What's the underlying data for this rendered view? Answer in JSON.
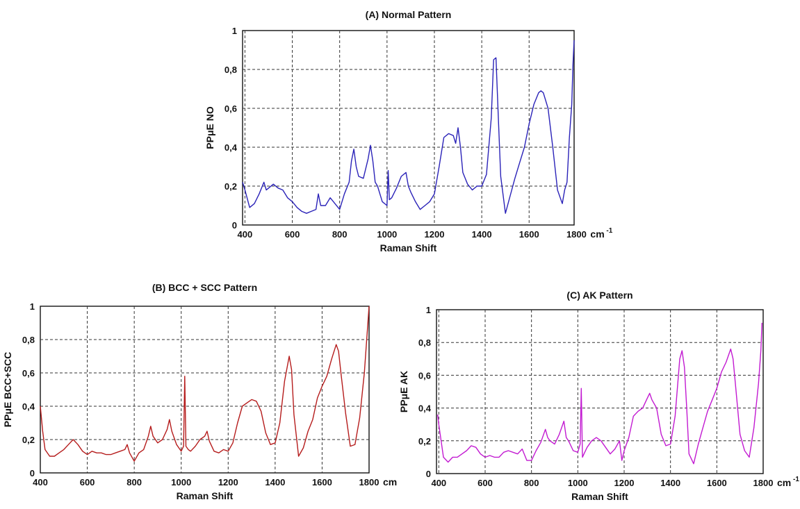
{
  "chart_data": [
    {
      "type": "line",
      "title": "(A)  Normal Pattern",
      "xlabel": "Raman Shift",
      "ylabel": "PPμE NO",
      "x_unit": "cm",
      "x_unit_exp": "-1",
      "xlim": [
        390,
        1790
      ],
      "ylim": [
        0,
        1
      ],
      "xticks": [
        400,
        600,
        800,
        1000,
        1200,
        1400,
        1600,
        1800
      ],
      "yticks": [
        0,
        0.2,
        0.4,
        0.6,
        0.8,
        1
      ],
      "ytick_labels": [
        "0",
        "0,2",
        "0,4",
        "0,6",
        "0,8",
        "1"
      ],
      "grid": true,
      "color": "#2a22b8",
      "series": [
        {
          "x": [
            390,
            400,
            420,
            440,
            460,
            480,
            490,
            500,
            520,
            540,
            560,
            580,
            600,
            620,
            640,
            660,
            680,
            700,
            710,
            720,
            740,
            760,
            780,
            800,
            820,
            840,
            850,
            860,
            870,
            880,
            900,
            920,
            930,
            940,
            950,
            960,
            980,
            1000,
            1005,
            1010,
            1020,
            1040,
            1060,
            1080,
            1090,
            1100,
            1120,
            1140,
            1160,
            1180,
            1200,
            1220,
            1240,
            1260,
            1280,
            1290,
            1300,
            1310,
            1320,
            1340,
            1360,
            1380,
            1400,
            1420,
            1440,
            1450,
            1460,
            1470,
            1480,
            1500,
            1520,
            1540,
            1560,
            1580,
            1600,
            1620,
            1640,
            1650,
            1660,
            1680,
            1700,
            1720,
            1740,
            1750,
            1760,
            1770,
            1780,
            1785,
            1790
          ],
          "y": [
            0.22,
            0.18,
            0.09,
            0.11,
            0.16,
            0.22,
            0.18,
            0.19,
            0.21,
            0.19,
            0.18,
            0.14,
            0.12,
            0.09,
            0.07,
            0.06,
            0.07,
            0.08,
            0.16,
            0.1,
            0.1,
            0.14,
            0.11,
            0.08,
            0.16,
            0.22,
            0.33,
            0.39,
            0.3,
            0.25,
            0.24,
            0.34,
            0.41,
            0.33,
            0.22,
            0.2,
            0.12,
            0.1,
            0.28,
            0.13,
            0.14,
            0.19,
            0.25,
            0.27,
            0.2,
            0.17,
            0.12,
            0.08,
            0.1,
            0.12,
            0.16,
            0.3,
            0.45,
            0.47,
            0.46,
            0.42,
            0.5,
            0.4,
            0.27,
            0.21,
            0.18,
            0.2,
            0.2,
            0.26,
            0.55,
            0.85,
            0.86,
            0.55,
            0.25,
            0.06,
            0.15,
            0.24,
            0.32,
            0.4,
            0.52,
            0.62,
            0.68,
            0.69,
            0.68,
            0.6,
            0.4,
            0.18,
            0.11,
            0.18,
            0.22,
            0.45,
            0.62,
            0.82,
            0.95
          ]
        }
      ]
    },
    {
      "type": "line",
      "title": "(B)  BCC + SCC Pattern",
      "xlabel": "Raman Shift",
      "ylabel": "PPμE BCC+SCC",
      "x_unit": "cm",
      "x_unit_exp": "",
      "xlim": [
        400,
        1800
      ],
      "ylim": [
        0,
        1
      ],
      "xticks": [
        400,
        600,
        800,
        1000,
        1200,
        1400,
        1600,
        1800
      ],
      "yticks": [
        0,
        0.2,
        0.4,
        0.6,
        0.8,
        1
      ],
      "ytick_labels": [
        "0",
        "0,2",
        "0,4",
        "0,6",
        "0,8",
        "1"
      ],
      "grid": true,
      "color": "#b51c1c",
      "series": [
        {
          "x": [
            400,
            410,
            420,
            440,
            460,
            480,
            500,
            520,
            540,
            560,
            580,
            600,
            620,
            640,
            660,
            680,
            700,
            720,
            740,
            760,
            770,
            780,
            800,
            820,
            840,
            860,
            870,
            880,
            900,
            920,
            940,
            950,
            960,
            980,
            1000,
            1010,
            1015,
            1020,
            1030,
            1040,
            1060,
            1080,
            1100,
            1110,
            1120,
            1140,
            1160,
            1180,
            1200,
            1220,
            1240,
            1260,
            1280,
            1300,
            1320,
            1340,
            1360,
            1380,
            1400,
            1420,
            1440,
            1460,
            1470,
            1480,
            1500,
            1520,
            1540,
            1560,
            1580,
            1600,
            1620,
            1640,
            1660,
            1670,
            1680,
            1700,
            1720,
            1740,
            1760,
            1780,
            1790,
            1800
          ],
          "y": [
            0.4,
            0.25,
            0.14,
            0.1,
            0.1,
            0.12,
            0.14,
            0.17,
            0.2,
            0.17,
            0.13,
            0.11,
            0.13,
            0.12,
            0.12,
            0.11,
            0.11,
            0.12,
            0.13,
            0.14,
            0.17,
            0.12,
            0.07,
            0.12,
            0.14,
            0.22,
            0.28,
            0.22,
            0.18,
            0.2,
            0.26,
            0.32,
            0.25,
            0.17,
            0.13,
            0.16,
            0.58,
            0.16,
            0.14,
            0.13,
            0.16,
            0.2,
            0.22,
            0.25,
            0.19,
            0.13,
            0.12,
            0.14,
            0.13,
            0.18,
            0.3,
            0.4,
            0.42,
            0.44,
            0.43,
            0.37,
            0.24,
            0.17,
            0.18,
            0.3,
            0.55,
            0.7,
            0.62,
            0.35,
            0.1,
            0.15,
            0.25,
            0.32,
            0.45,
            0.52,
            0.58,
            0.68,
            0.77,
            0.73,
            0.6,
            0.36,
            0.16,
            0.17,
            0.33,
            0.6,
            0.8,
            1.0
          ]
        }
      ]
    },
    {
      "type": "line",
      "title": "(C)  AK Pattern",
      "xlabel": "Raman Shift",
      "ylabel": "PPμE AK",
      "x_unit": "cm",
      "x_unit_exp": "-1",
      "xlim": [
        390,
        1800
      ],
      "ylim": [
        0,
        1
      ],
      "xticks": [
        400,
        600,
        800,
        1000,
        1200,
        1400,
        1600,
        1800
      ],
      "yticks": [
        0,
        0.2,
        0.4,
        0.6,
        0.8,
        1
      ],
      "ytick_labels": [
        "0",
        "0,2",
        "0,4",
        "0,6",
        "0,8",
        "1"
      ],
      "grid": true,
      "color": "#c21ad1",
      "series": [
        {
          "x": [
            395,
            400,
            420,
            440,
            460,
            480,
            500,
            520,
            540,
            560,
            580,
            600,
            620,
            640,
            660,
            680,
            700,
            720,
            740,
            760,
            780,
            800,
            820,
            840,
            860,
            870,
            880,
            900,
            920,
            940,
            950,
            960,
            980,
            1000,
            1010,
            1015,
            1020,
            1030,
            1040,
            1060,
            1080,
            1100,
            1120,
            1140,
            1160,
            1180,
            1190,
            1200,
            1220,
            1240,
            1260,
            1280,
            1300,
            1310,
            1320,
            1340,
            1360,
            1380,
            1400,
            1420,
            1440,
            1450,
            1460,
            1470,
            1480,
            1500,
            1520,
            1540,
            1560,
            1580,
            1600,
            1620,
            1640,
            1660,
            1670,
            1680,
            1700,
            1720,
            1740,
            1760,
            1780,
            1790,
            1795
          ],
          "y": [
            0.36,
            0.3,
            0.1,
            0.07,
            0.1,
            0.1,
            0.12,
            0.14,
            0.17,
            0.16,
            0.12,
            0.1,
            0.11,
            0.1,
            0.1,
            0.13,
            0.14,
            0.13,
            0.12,
            0.15,
            0.08,
            0.08,
            0.14,
            0.19,
            0.27,
            0.22,
            0.2,
            0.18,
            0.24,
            0.32,
            0.22,
            0.2,
            0.14,
            0.13,
            0.18,
            0.52,
            0.1,
            0.13,
            0.16,
            0.2,
            0.22,
            0.2,
            0.16,
            0.12,
            0.15,
            0.2,
            0.08,
            0.14,
            0.22,
            0.35,
            0.38,
            0.4,
            0.46,
            0.49,
            0.45,
            0.4,
            0.24,
            0.17,
            0.18,
            0.35,
            0.7,
            0.75,
            0.65,
            0.4,
            0.12,
            0.06,
            0.18,
            0.28,
            0.38,
            0.45,
            0.52,
            0.62,
            0.68,
            0.76,
            0.7,
            0.55,
            0.24,
            0.14,
            0.1,
            0.28,
            0.55,
            0.75,
            0.92
          ]
        }
      ]
    }
  ]
}
